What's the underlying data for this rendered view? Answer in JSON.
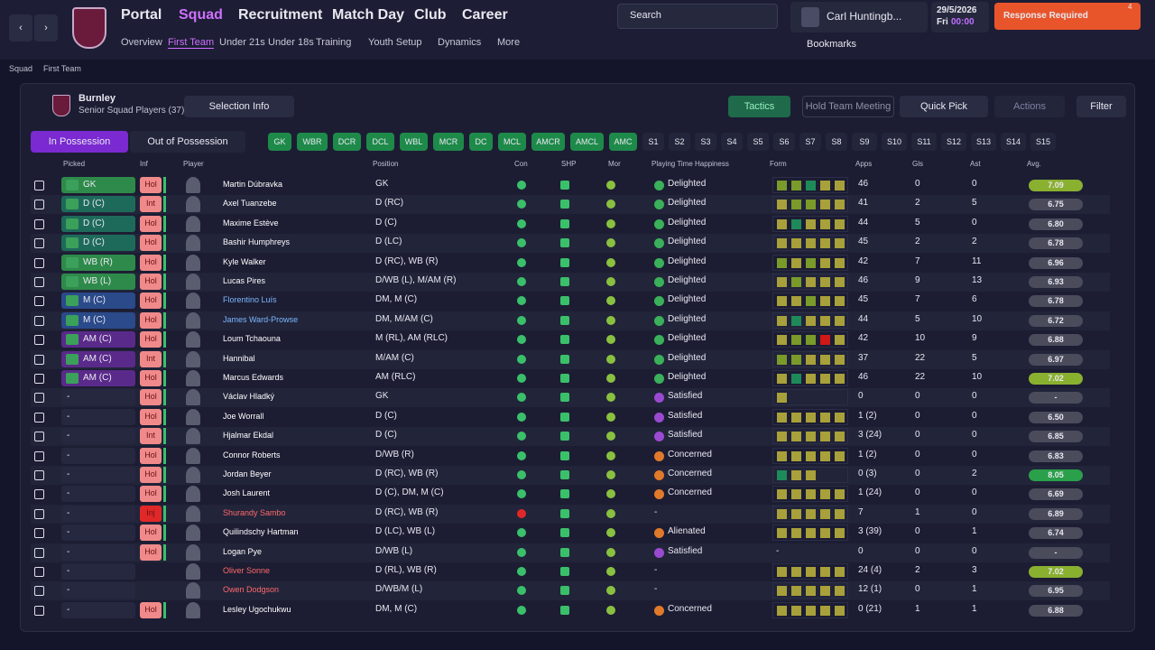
{
  "nav": {
    "main": [
      "Portal",
      "Squad",
      "Recruitment",
      "Match Day",
      "Club",
      "Career"
    ],
    "sub": [
      "Overview",
      "First Team",
      "Under 21s",
      "Under 18s",
      "Training",
      "Youth Setup",
      "Dynamics",
      "More"
    ],
    "search": "Search",
    "manager": "Carl Huntingb...",
    "date": "29/5/2026",
    "day": "Fri",
    "time": "00:00",
    "alert": "Response Required",
    "alert_count": "4",
    "bookmarks": "Bookmarks"
  },
  "breadcrumb": [
    "Squad",
    "First Team"
  ],
  "panel": {
    "club": "Burnley",
    "subtitle": "Senior Squad Players (37)",
    "selection_info": "Selection Info",
    "tactics": "Tactics",
    "meeting": "Hold Team Meeting",
    "quick_pick": "Quick Pick",
    "actions": "Actions",
    "filter": "Filter",
    "tabs": [
      "In Possession",
      "Out of Possession"
    ],
    "positions": [
      "GK",
      "WBR",
      "DCR",
      "DCL",
      "WBL",
      "MCR",
      "DC",
      "MCL",
      "AMCR",
      "AMCL",
      "AMC"
    ],
    "slots": [
      "S1",
      "S2",
      "S3",
      "S4",
      "S5",
      "S6",
      "S7",
      "S8",
      "S9",
      "S10",
      "S11",
      "S12",
      "S13",
      "S14",
      "S15"
    ]
  },
  "table": {
    "headers": [
      "Picked",
      "Inf",
      "Player",
      "Position",
      "Con",
      "SHP",
      "Mor",
      "Playing Time Happiness",
      "Form",
      "Apps",
      "Gls",
      "Ast",
      "Avg."
    ],
    "rows": [
      {
        "picked": "GK",
        "picked_color": "#2e8a4a",
        "inf": "Hol",
        "inf_color": "#f08a8a",
        "name": "Martin Dúbravka",
        "name_color": "#ffffff",
        "position": "GK",
        "pth": "Delighted",
        "pth_color": "#3bb05a",
        "form": [
          "#7a9a2a",
          "#7a9a2a",
          "#1e8a5a",
          "#a8a03a",
          "#a8a03a"
        ],
        "apps": 46,
        "gls": 0,
        "ast": 0,
        "avg": "7.09"
      },
      {
        "picked": "D (C)",
        "picked_color": "#1e6a5a",
        "inf": "Int",
        "inf_color": "#f08a8a",
        "name": "Axel Tuanzebe",
        "name_color": "#ffffff",
        "position": "D (RC)",
        "pth": "Delighted",
        "pth_color": "#3bb05a",
        "form": [
          "#a8a03a",
          "#7a9a2a",
          "#7a9a2a",
          "#a8a03a",
          "#a8a03a"
        ],
        "apps": 41,
        "gls": 2,
        "ast": 5,
        "avg": "6.75"
      },
      {
        "picked": "D (C)",
        "picked_color": "#1e6a5a",
        "inf": "Hol",
        "inf_color": "#f08a8a",
        "name": "Maxime Estève",
        "name_color": "#ffffff",
        "position": "D (C)",
        "pth": "Delighted",
        "pth_color": "#3bb05a",
        "form": [
          "#a8a03a",
          "#1e8a5a",
          "#a8a03a",
          "#a8a03a",
          "#a8a03a"
        ],
        "apps": 44,
        "gls": 5,
        "ast": 0,
        "avg": "6.80"
      },
      {
        "picked": "D (C)",
        "picked_color": "#1e6a5a",
        "inf": "Hol",
        "inf_color": "#f08a8a",
        "name": "Bashir Humphreys",
        "name_color": "#ffffff",
        "position": "D (LC)",
        "pth": "Delighted",
        "pth_color": "#3bb05a",
        "form": [
          "#a8a03a",
          "#a8a03a",
          "#a8a03a",
          "#a8a03a",
          "#a8a03a"
        ],
        "apps": 45,
        "gls": 2,
        "ast": 2,
        "avg": "6.78"
      },
      {
        "picked": "WB (R)",
        "picked_color": "#2e8a4a",
        "inf": "Hol",
        "inf_color": "#f08a8a",
        "name": "Kyle Walker",
        "name_color": "#ffffff",
        "position": "D (RC), WB (R)",
        "pth": "Delighted",
        "pth_color": "#3bb05a",
        "form": [
          "#7a9a2a",
          "#a8a03a",
          "#7a9a2a",
          "#a8a03a",
          "#a8a03a"
        ],
        "apps": 42,
        "gls": 7,
        "ast": 11,
        "avg": "6.96"
      },
      {
        "picked": "WB (L)",
        "picked_color": "#2e8a4a",
        "inf": "Hol",
        "inf_color": "#f08a8a",
        "name": "Lucas Pires",
        "name_color": "#ffffff",
        "position": "D/WB (L), M/AM (R)",
        "pth": "Delighted",
        "pth_color": "#3bb05a",
        "form": [
          "#a8a03a",
          "#7a9a2a",
          "#a8a03a",
          "#a8a03a",
          "#a8a03a"
        ],
        "apps": 46,
        "gls": 9,
        "ast": 13,
        "avg": "6.93"
      },
      {
        "picked": "M (C)",
        "picked_color": "#2a4a8a",
        "inf": "Hol",
        "inf_color": "#f08a8a",
        "name": "Florentino Luís",
        "name_color": "#7ab8ff",
        "position": "DM, M (C)",
        "pth": "Delighted",
        "pth_color": "#3bb05a",
        "form": [
          "#a8a03a",
          "#a8a03a",
          "#7a9a2a",
          "#a8a03a",
          "#a8a03a"
        ],
        "apps": 45,
        "gls": 7,
        "ast": 6,
        "avg": "6.78"
      },
      {
        "picked": "M (C)",
        "picked_color": "#2a4a8a",
        "inf": "Hol",
        "inf_color": "#f08a8a",
        "name": "James Ward-Prowse",
        "name_color": "#7ab8ff",
        "position": "DM, M/AM (C)",
        "pth": "Delighted",
        "pth_color": "#3bb05a",
        "form": [
          "#a8a03a",
          "#1e8a5a",
          "#a8a03a",
          "#a8a03a",
          "#a8a03a"
        ],
        "apps": 44,
        "gls": 5,
        "ast": 10,
        "avg": "6.72"
      },
      {
        "picked": "AM (C)",
        "picked_color": "#5a2a8a",
        "inf": "Hol",
        "inf_color": "#f08a8a",
        "name": "Loum Tchaouna",
        "name_color": "#ffffff",
        "position": "M (RL), AM (RLC)",
        "pth": "Delighted",
        "pth_color": "#3bb05a",
        "form": [
          "#a8a03a",
          "#7a9a2a",
          "#7a9a2a",
          "#d01818",
          "#a8a03a"
        ],
        "apps": 42,
        "gls": 10,
        "ast": 9,
        "avg": "6.88"
      },
      {
        "picked": "AM (C)",
        "picked_color": "#5a2a8a",
        "inf": "Int",
        "inf_color": "#f08a8a",
        "name": "Hannibal",
        "name_color": "#ffffff",
        "position": "M/AM (C)",
        "pth": "Delighted",
        "pth_color": "#3bb05a",
        "form": [
          "#7a9a2a",
          "#7a9a2a",
          "#a8a03a",
          "#a8a03a",
          "#a8a03a"
        ],
        "apps": 37,
        "gls": 22,
        "ast": 5,
        "avg": "6.97"
      },
      {
        "picked": "AM (C)",
        "picked_color": "#5a2a8a",
        "inf": "Hol",
        "inf_color": "#f08a8a",
        "name": "Marcus Edwards",
        "name_color": "#ffffff",
        "position": "AM (RLC)",
        "pth": "Delighted",
        "pth_color": "#3bb05a",
        "form": [
          "#a8a03a",
          "#1e8a5a",
          "#a8a03a",
          "#a8a03a",
          "#a8a03a"
        ],
        "apps": 46,
        "gls": 22,
        "ast": 10,
        "avg": "7.02"
      },
      {
        "picked": "-",
        "picked_color": "#262840",
        "inf": "Hol",
        "inf_color": "#f08a8a",
        "name": "Václav Hladký",
        "name_color": "#ffffff",
        "position": "GK",
        "pth": "Satisfied",
        "pth_color": "#9a4ad0",
        "form": [
          "#a8a03a"
        ],
        "apps": 0,
        "gls": 0,
        "ast": 0,
        "avg": "-"
      },
      {
        "picked": "-",
        "picked_color": "#262840",
        "inf": "Hol",
        "inf_color": "#f08a8a",
        "name": "Joe Worrall",
        "name_color": "#ffffff",
        "position": "D (C)",
        "pth": "Satisfied",
        "pth_color": "#9a4ad0",
        "form": [
          "#a8a03a",
          "#a8a03a",
          "#a8a03a",
          "#a8a03a",
          "#a8a03a"
        ],
        "apps": "1 (2)",
        "gls": 0,
        "ast": 0,
        "avg": "6.50"
      },
      {
        "picked": "-",
        "picked_color": "#262840",
        "inf": "Int",
        "inf_color": "#f08a8a",
        "name": "Hjalmar Ekdal",
        "name_color": "#ffffff",
        "position": "D (C)",
        "pth": "Satisfied",
        "pth_color": "#9a4ad0",
        "form": [
          "#a8a03a",
          "#a8a03a",
          "#a8a03a",
          "#a8a03a",
          "#a8a03a"
        ],
        "apps": "3 (24)",
        "gls": 0,
        "ast": 0,
        "avg": "6.85"
      },
      {
        "picked": "-",
        "picked_color": "#262840",
        "inf": "Hol",
        "inf_color": "#f08a8a",
        "name": "Connor Roberts",
        "name_color": "#ffffff",
        "position": "D/WB (R)",
        "pth": "Concerned",
        "pth_color": "#e07a2a",
        "form": [
          "#a8a03a",
          "#a8a03a",
          "#a8a03a",
          "#a8a03a",
          "#a8a03a"
        ],
        "apps": "1 (2)",
        "gls": 0,
        "ast": 0,
        "avg": "6.83"
      },
      {
        "picked": "-",
        "picked_color": "#262840",
        "inf": "Hol",
        "inf_color": "#f08a8a",
        "name": "Jordan Beyer",
        "name_color": "#ffffff",
        "position": "D (RC), WB (R)",
        "pth": "Concerned",
        "pth_color": "#e07a2a",
        "form": [
          "#1e8a5a",
          "#a8a03a",
          "#a8a03a"
        ],
        "apps": "0 (3)",
        "gls": 0,
        "ast": 2,
        "avg": "8.05"
      },
      {
        "picked": "-",
        "picked_color": "#262840",
        "inf": "Hol",
        "inf_color": "#f08a8a",
        "name": "Josh Laurent",
        "name_color": "#ffffff",
        "position": "D (C), DM, M (C)",
        "pth": "Concerned",
        "pth_color": "#e07a2a",
        "form": [
          "#a8a03a",
          "#a8a03a",
          "#a8a03a",
          "#a8a03a",
          "#a8a03a"
        ],
        "apps": "1 (24)",
        "gls": 0,
        "ast": 0,
        "avg": "6.69"
      },
      {
        "picked": "-",
        "picked_color": "#262840",
        "inf": "Inj",
        "inf_color": "#e02828",
        "name": "Shurandy Sambo",
        "name_color": "#ff6a6a",
        "position": "D (RC), WB (R)",
        "pth": "-",
        "pth_color": "",
        "form": [
          "#a8a03a",
          "#a8a03a",
          "#a8a03a",
          "#a8a03a",
          "#a8a03a"
        ],
        "apps": 7,
        "gls": 1,
        "ast": 0,
        "avg": "6.89"
      },
      {
        "picked": "-",
        "picked_color": "#262840",
        "inf": "Hol",
        "inf_color": "#f08a8a",
        "name": "Quilindschy Hartman",
        "name_color": "#ffffff",
        "position": "D (LC), WB (L)",
        "pth": "Alienated",
        "pth_color": "#e07a2a",
        "form": [
          "#a8a03a",
          "#a8a03a",
          "#a8a03a",
          "#a8a03a",
          "#a8a03a"
        ],
        "apps": "3 (39)",
        "gls": 0,
        "ast": 1,
        "avg": "6.74"
      },
      {
        "picked": "-",
        "picked_color": "#262840",
        "inf": "Hol",
        "inf_color": "#f08a8a",
        "name": "Logan Pye",
        "name_color": "#ffffff",
        "position": "D/WB (L)",
        "pth": "Satisfied",
        "pth_color": "#9a4ad0",
        "form": "-",
        "apps": 0,
        "gls": 0,
        "ast": 0,
        "avg": "-"
      },
      {
        "picked": "-",
        "picked_color": "#262840",
        "inf": "",
        "inf_color": "",
        "name": "Oliver Sonne",
        "name_color": "#ff6a6a",
        "position": "D (RL), WB (R)",
        "pth": "-",
        "pth_color": "",
        "form": [
          "#a8a03a",
          "#a8a03a",
          "#a8a03a",
          "#a8a03a",
          "#a8a03a"
        ],
        "apps": "24 (4)",
        "gls": 2,
        "ast": 3,
        "avg": "7.02"
      },
      {
        "picked": "-",
        "picked_color": "#262840",
        "inf": "",
        "inf_color": "",
        "name": "Owen Dodgson",
        "name_color": "#ff6a6a",
        "position": "D/WB/M (L)",
        "pth": "-",
        "pth_color": "",
        "form": [
          "#a8a03a",
          "#a8a03a",
          "#a8a03a",
          "#a8a03a",
          "#a8a03a"
        ],
        "apps": "12 (1)",
        "gls": 0,
        "ast": 1,
        "avg": "6.95"
      },
      {
        "picked": "-",
        "picked_color": "#262840",
        "inf": "Hol",
        "inf_color": "#f08a8a",
        "name": "Lesley Ugochukwu",
        "name_color": "#ffffff",
        "position": "DM, M (C)",
        "pth": "Concerned",
        "pth_color": "#e07a2a",
        "form": [
          "#a8a03a",
          "#a8a03a",
          "#a8a03a",
          "#a8a03a",
          "#a8a03a"
        ],
        "apps": "0 (21)",
        "gls": 1,
        "ast": 1,
        "avg": "6.88"
      }
    ]
  }
}
